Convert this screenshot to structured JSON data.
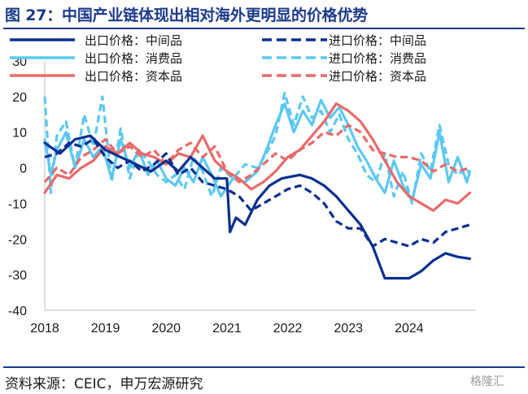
{
  "header": {
    "title": "图 27：中国产业链体现出相对海外更明显的价格优势"
  },
  "footer": {
    "source": "资料来源：CEIC，申万宏源研究",
    "watermark": "格隆汇"
  },
  "chart_data": {
    "type": "line",
    "ylim": [
      -40,
      30
    ],
    "yticks": [
      "30",
      "20",
      "10",
      "0",
      "-10",
      "-20",
      "-30",
      "-40"
    ],
    "xlim": [
      2018,
      2025.1
    ],
    "xticks": [
      "2018",
      "2019",
      "2020",
      "2021",
      "2022",
      "2023",
      "2024"
    ],
    "grid": false,
    "legend_position": "top",
    "series": [
      {
        "name": "出口价格：中间品",
        "color": "#0b2f8f",
        "dash": "solid",
        "points": [
          [
            2018.0,
            7
          ],
          [
            2018.25,
            4
          ],
          [
            2018.5,
            8
          ],
          [
            2018.75,
            9
          ],
          [
            2019.0,
            5
          ],
          [
            2019.25,
            3
          ],
          [
            2019.5,
            1
          ],
          [
            2019.75,
            -1
          ],
          [
            2020.0,
            2
          ],
          [
            2020.2,
            -1
          ],
          [
            2020.4,
            3
          ],
          [
            2020.6,
            0
          ],
          [
            2020.8,
            -3
          ],
          [
            2021.0,
            -3
          ],
          [
            2021.05,
            -18
          ],
          [
            2021.15,
            -14
          ],
          [
            2021.3,
            -16
          ],
          [
            2021.5,
            -9
          ],
          [
            2021.7,
            -5
          ],
          [
            2021.9,
            -3
          ],
          [
            2022.2,
            -2
          ],
          [
            2022.4,
            -3
          ],
          [
            2022.6,
            -5
          ],
          [
            2022.8,
            -8
          ],
          [
            2023.0,
            -12
          ],
          [
            2023.2,
            -16
          ],
          [
            2023.4,
            -22
          ],
          [
            2023.6,
            -31
          ],
          [
            2023.8,
            -31
          ],
          [
            2024.0,
            -31
          ],
          [
            2024.2,
            -29
          ],
          [
            2024.4,
            -26
          ],
          [
            2024.6,
            -24
          ],
          [
            2024.8,
            -25
          ],
          [
            2025.0,
            -25.5
          ]
        ]
      },
      {
        "name": "出口价格：消费品",
        "color": "#5cc8f2",
        "dash": "solid",
        "points": [
          [
            2018.0,
            8
          ],
          [
            2018.1,
            -2
          ],
          [
            2018.2,
            5
          ],
          [
            2018.35,
            10
          ],
          [
            2018.5,
            0
          ],
          [
            2018.65,
            8
          ],
          [
            2018.8,
            3
          ],
          [
            2018.95,
            6
          ],
          [
            2019.1,
            -3
          ],
          [
            2019.25,
            8
          ],
          [
            2019.4,
            0
          ],
          [
            2019.55,
            5
          ],
          [
            2019.7,
            -2
          ],
          [
            2019.85,
            2
          ],
          [
            2020.0,
            -3
          ],
          [
            2020.15,
            -5
          ],
          [
            2020.3,
            0
          ],
          [
            2020.45,
            -4
          ],
          [
            2020.6,
            3
          ],
          [
            2020.75,
            -2
          ],
          [
            2020.9,
            -8
          ],
          [
            2021.1,
            -3
          ],
          [
            2021.3,
            -4
          ],
          [
            2021.5,
            -1
          ],
          [
            2021.65,
            5
          ],
          [
            2021.8,
            12
          ],
          [
            2021.95,
            18
          ],
          [
            2022.1,
            10
          ],
          [
            2022.25,
            16
          ],
          [
            2022.4,
            12
          ],
          [
            2022.55,
            19
          ],
          [
            2022.7,
            14
          ],
          [
            2022.85,
            17
          ],
          [
            2023.0,
            12
          ],
          [
            2023.15,
            6
          ],
          [
            2023.3,
            2
          ],
          [
            2023.45,
            -3
          ],
          [
            2023.6,
            -7
          ],
          [
            2023.75,
            2
          ],
          [
            2023.9,
            -5
          ],
          [
            2024.05,
            -9
          ],
          [
            2024.2,
            1
          ],
          [
            2024.35,
            -3
          ],
          [
            2024.5,
            10
          ],
          [
            2024.65,
            -4
          ],
          [
            2024.8,
            3
          ],
          [
            2024.95,
            -4
          ],
          [
            2025.0,
            -1
          ]
        ]
      },
      {
        "name": "出口价格：资本品",
        "color": "#e86a6a",
        "dash": "solid",
        "points": [
          [
            2018.0,
            -7
          ],
          [
            2018.2,
            -2
          ],
          [
            2018.4,
            -3
          ],
          [
            2018.6,
            0
          ],
          [
            2018.8,
            2
          ],
          [
            2019.0,
            6
          ],
          [
            2019.2,
            4
          ],
          [
            2019.4,
            7
          ],
          [
            2019.6,
            4
          ],
          [
            2019.8,
            3
          ],
          [
            2020.0,
            1
          ],
          [
            2020.2,
            4
          ],
          [
            2020.4,
            3
          ],
          [
            2020.6,
            9
          ],
          [
            2020.8,
            2
          ],
          [
            2021.0,
            -1
          ],
          [
            2021.2,
            -3
          ],
          [
            2021.4,
            -6
          ],
          [
            2021.6,
            -4
          ],
          [
            2021.8,
            -1
          ],
          [
            2022.0,
            3
          ],
          [
            2022.2,
            5
          ],
          [
            2022.4,
            9
          ],
          [
            2022.6,
            13
          ],
          [
            2022.8,
            18
          ],
          [
            2023.0,
            16
          ],
          [
            2023.2,
            13
          ],
          [
            2023.4,
            8
          ],
          [
            2023.6,
            2
          ],
          [
            2023.8,
            -4
          ],
          [
            2024.0,
            -8
          ],
          [
            2024.2,
            -10
          ],
          [
            2024.4,
            -12
          ],
          [
            2024.6,
            -9
          ],
          [
            2024.8,
            -10
          ],
          [
            2025.0,
            -7
          ]
        ]
      },
      {
        "name": "进口价格：中间品",
        "color": "#0b2f8f",
        "dash": "dashed",
        "points": [
          [
            2018.0,
            3
          ],
          [
            2018.2,
            4
          ],
          [
            2018.4,
            7
          ],
          [
            2018.6,
            6
          ],
          [
            2018.8,
            8
          ],
          [
            2019.0,
            3
          ],
          [
            2019.2,
            0
          ],
          [
            2019.4,
            2
          ],
          [
            2019.6,
            -1
          ],
          [
            2019.8,
            1
          ],
          [
            2020.0,
            4
          ],
          [
            2020.2,
            -2
          ],
          [
            2020.4,
            0
          ],
          [
            2020.6,
            -4
          ],
          [
            2020.8,
            -5
          ],
          [
            2021.0,
            -6
          ],
          [
            2021.2,
            -8
          ],
          [
            2021.4,
            -12
          ],
          [
            2021.6,
            -10
          ],
          [
            2021.8,
            -8
          ],
          [
            2022.0,
            -6
          ],
          [
            2022.2,
            -5
          ],
          [
            2022.4,
            -7
          ],
          [
            2022.6,
            -10
          ],
          [
            2022.8,
            -15
          ],
          [
            2023.0,
            -17
          ],
          [
            2023.2,
            -17
          ],
          [
            2023.4,
            -22
          ],
          [
            2023.6,
            -20
          ],
          [
            2023.8,
            -21
          ],
          [
            2024.0,
            -22
          ],
          [
            2024.2,
            -20
          ],
          [
            2024.4,
            -21
          ],
          [
            2024.6,
            -18
          ],
          [
            2024.8,
            -17
          ],
          [
            2025.0,
            -16
          ]
        ]
      },
      {
        "name": "进口价格：消费品",
        "color": "#5cc8f2",
        "dash": "dashed",
        "points": [
          [
            2018.0,
            20
          ],
          [
            2018.1,
            -7
          ],
          [
            2018.2,
            9
          ],
          [
            2018.35,
            13
          ],
          [
            2018.5,
            0
          ],
          [
            2018.65,
            15
          ],
          [
            2018.8,
            6
          ],
          [
            2018.95,
            20
          ],
          [
            2019.1,
            -4
          ],
          [
            2019.25,
            11
          ],
          [
            2019.4,
            -3
          ],
          [
            2019.55,
            5
          ],
          [
            2019.7,
            2
          ],
          [
            2019.85,
            -2
          ],
          [
            2020.0,
            -4
          ],
          [
            2020.15,
            -2
          ],
          [
            2020.3,
            -6
          ],
          [
            2020.45,
            3
          ],
          [
            2020.6,
            -1
          ],
          [
            2020.75,
            -8
          ],
          [
            2020.9,
            0
          ],
          [
            2021.1,
            -3
          ],
          [
            2021.3,
            1
          ],
          [
            2021.5,
            0
          ],
          [
            2021.65,
            4
          ],
          [
            2021.8,
            9
          ],
          [
            2021.95,
            21
          ],
          [
            2022.1,
            12
          ],
          [
            2022.25,
            20
          ],
          [
            2022.4,
            14
          ],
          [
            2022.55,
            16
          ],
          [
            2022.7,
            10
          ],
          [
            2022.85,
            15
          ],
          [
            2023.0,
            8
          ],
          [
            2023.15,
            4
          ],
          [
            2023.3,
            -2
          ],
          [
            2023.45,
            -4
          ],
          [
            2023.6,
            4
          ],
          [
            2023.75,
            -8
          ],
          [
            2023.9,
            -1
          ],
          [
            2024.05,
            -10
          ],
          [
            2024.2,
            4
          ],
          [
            2024.35,
            -1
          ],
          [
            2024.5,
            12
          ],
          [
            2024.65,
            1
          ],
          [
            2024.8,
            -2
          ],
          [
            2024.95,
            0
          ],
          [
            2025.0,
            -2
          ]
        ]
      },
      {
        "name": "进口价格：资本品",
        "color": "#e86a6a",
        "dash": "dashed",
        "points": [
          [
            2018.0,
            -4
          ],
          [
            2018.2,
            0
          ],
          [
            2018.4,
            -2
          ],
          [
            2018.6,
            3
          ],
          [
            2018.8,
            5
          ],
          [
            2019.0,
            8
          ],
          [
            2019.2,
            4
          ],
          [
            2019.4,
            6
          ],
          [
            2019.6,
            3
          ],
          [
            2019.8,
            5
          ],
          [
            2020.0,
            1
          ],
          [
            2020.2,
            5
          ],
          [
            2020.4,
            7
          ],
          [
            2020.6,
            3
          ],
          [
            2020.8,
            6
          ],
          [
            2021.0,
            -1
          ],
          [
            2021.2,
            -4
          ],
          [
            2021.4,
            -2
          ],
          [
            2021.6,
            1
          ],
          [
            2021.8,
            4
          ],
          [
            2022.0,
            2
          ],
          [
            2022.2,
            5
          ],
          [
            2022.4,
            7
          ],
          [
            2022.6,
            10
          ],
          [
            2022.8,
            9
          ],
          [
            2023.0,
            12
          ],
          [
            2023.2,
            10
          ],
          [
            2023.4,
            5
          ],
          [
            2023.6,
            4
          ],
          [
            2023.8,
            3
          ],
          [
            2024.0,
            3
          ],
          [
            2024.2,
            2
          ],
          [
            2024.4,
            -1
          ],
          [
            2024.6,
            1
          ],
          [
            2024.8,
            -1
          ],
          [
            2025.0,
            0
          ]
        ]
      }
    ]
  }
}
